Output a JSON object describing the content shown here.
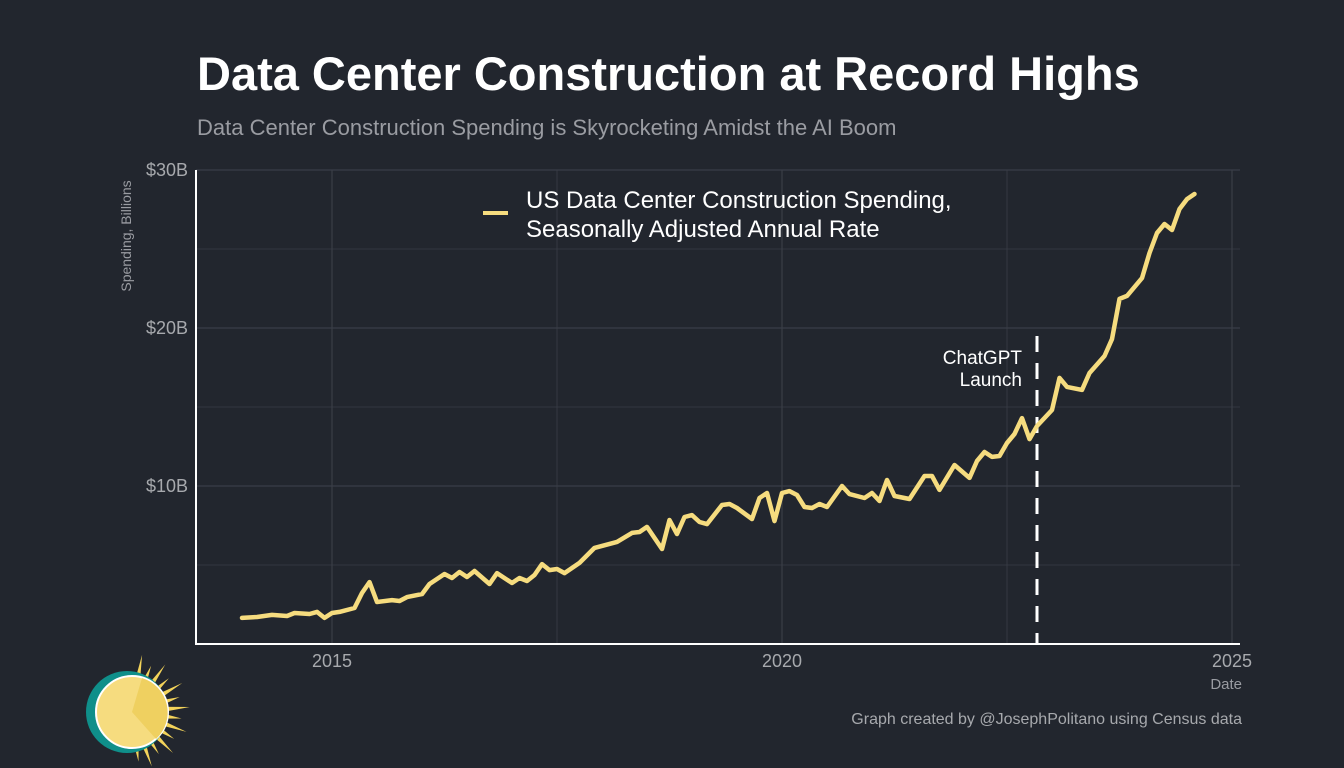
{
  "colors": {
    "background": "#22262e",
    "line": "#f6dc7f",
    "grid": "#3a3e47",
    "axis": "#ffffff",
    "annotation": "#ffffff"
  },
  "logo": {
    "name": "sun-logo-icon"
  },
  "chart_data": {
    "type": "line",
    "title": "Data Center Construction at Record Highs",
    "subtitle": "Data Center Construction Spending is Skyrocketing Amidst the AI Boom",
    "xlabel": "Date",
    "ylabel": "Spending, Billions",
    "ylim": [
      0,
      30
    ],
    "xlim": [
      "2013-09",
      "2025-01"
    ],
    "yticks": [
      {
        "value": 10,
        "label": "$10B"
      },
      {
        "value": 20,
        "label": "$20B"
      },
      {
        "value": 30,
        "label": "$30B"
      }
    ],
    "xticks": [
      {
        "value": 2015,
        "label": "2015"
      },
      {
        "value": 2020,
        "label": "2020"
      },
      {
        "value": 2025,
        "label": "2025"
      }
    ],
    "grid": true,
    "legend_placement": "top-center",
    "credit": "Graph created by @JosephPolitano using Census data",
    "annotation": {
      "date": "2022-11",
      "line1": "ChatGPT",
      "line2": "Launch"
    },
    "series": [
      {
        "name_line1": "US Data Center Construction Spending,",
        "name_line2": "Seasonally Adjusted Annual Rate",
        "points": [
          [
            "2014-01",
            1.65
          ],
          [
            "2014-03",
            1.71
          ],
          [
            "2014-05",
            1.84
          ],
          [
            "2014-07",
            1.77
          ],
          [
            "2014-08",
            1.96
          ],
          [
            "2014-10",
            1.9
          ],
          [
            "2014-11",
            2.03
          ],
          [
            "2014-12",
            1.65
          ],
          [
            "2015-01",
            1.96
          ],
          [
            "2015-02",
            2.03
          ],
          [
            "2015-04",
            2.28
          ],
          [
            "2015-05",
            3.23
          ],
          [
            "2015-06",
            3.92
          ],
          [
            "2015-07",
            2.66
          ],
          [
            "2015-09",
            2.78
          ],
          [
            "2015-10",
            2.72
          ],
          [
            "2015-11",
            2.97
          ],
          [
            "2016-01",
            3.16
          ],
          [
            "2016-02",
            3.8
          ],
          [
            "2016-04",
            4.43
          ],
          [
            "2016-05",
            4.18
          ],
          [
            "2016-06",
            4.56
          ],
          [
            "2016-07",
            4.24
          ],
          [
            "2016-08",
            4.62
          ],
          [
            "2016-10",
            3.8
          ],
          [
            "2016-11",
            4.49
          ],
          [
            "2017-01",
            3.86
          ],
          [
            "2017-02",
            4.18
          ],
          [
            "2017-03",
            3.99
          ],
          [
            "2017-04",
            4.37
          ],
          [
            "2017-05",
            5.06
          ],
          [
            "2017-06",
            4.68
          ],
          [
            "2017-07",
            4.75
          ],
          [
            "2017-08",
            4.49
          ],
          [
            "2017-10",
            5.13
          ],
          [
            "2017-12",
            6.08
          ],
          [
            "2018-03",
            6.46
          ],
          [
            "2018-05",
            7.03
          ],
          [
            "2018-06",
            7.09
          ],
          [
            "2018-07",
            7.41
          ],
          [
            "2018-09",
            6.01
          ],
          [
            "2018-10",
            7.85
          ],
          [
            "2018-11",
            6.96
          ],
          [
            "2018-12",
            8.04
          ],
          [
            "2019-01",
            8.16
          ],
          [
            "2019-02",
            7.72
          ],
          [
            "2019-03",
            7.59
          ],
          [
            "2019-05",
            8.8
          ],
          [
            "2019-06",
            8.86
          ],
          [
            "2019-07",
            8.61
          ],
          [
            "2019-09",
            7.91
          ],
          [
            "2019-10",
            9.24
          ],
          [
            "2019-11",
            9.56
          ],
          [
            "2019-12",
            7.78
          ],
          [
            "2020-01",
            9.56
          ],
          [
            "2020-02",
            9.68
          ],
          [
            "2020-03",
            9.43
          ],
          [
            "2020-04",
            8.67
          ],
          [
            "2020-05",
            8.61
          ],
          [
            "2020-06",
            8.86
          ],
          [
            "2020-07",
            8.67
          ],
          [
            "2020-09",
            10.0
          ],
          [
            "2020-10",
            9.49
          ],
          [
            "2020-12",
            9.24
          ],
          [
            "2021-01",
            9.56
          ],
          [
            "2021-02",
            9.05
          ],
          [
            "2021-03",
            10.38
          ],
          [
            "2021-04",
            9.37
          ],
          [
            "2021-06",
            9.18
          ],
          [
            "2021-08",
            10.63
          ],
          [
            "2021-09",
            10.63
          ],
          [
            "2021-10",
            9.75
          ],
          [
            "2021-12",
            11.33
          ],
          [
            "2022-02",
            10.51
          ],
          [
            "2022-03",
            11.58
          ],
          [
            "2022-04",
            12.15
          ],
          [
            "2022-05",
            11.84
          ],
          [
            "2022-06",
            11.9
          ],
          [
            "2022-07",
            12.72
          ],
          [
            "2022-08",
            13.29
          ],
          [
            "2022-09",
            14.3
          ],
          [
            "2022-10",
            12.97
          ],
          [
            "2022-11",
            13.8
          ],
          [
            "2023-01",
            14.81
          ],
          [
            "2023-02",
            16.84
          ],
          [
            "2023-03",
            16.27
          ],
          [
            "2023-05",
            16.08
          ],
          [
            "2023-06",
            17.15
          ],
          [
            "2023-08",
            18.23
          ],
          [
            "2023-09",
            19.3
          ],
          [
            "2023-10",
            21.84
          ],
          [
            "2023-11",
            22.03
          ],
          [
            "2024-01",
            23.16
          ],
          [
            "2024-02",
            24.75
          ],
          [
            "2024-03",
            26.01
          ],
          [
            "2024-04",
            26.58
          ],
          [
            "2024-05",
            26.2
          ],
          [
            "2024-06",
            27.53
          ],
          [
            "2024-07",
            28.16
          ],
          [
            "2024-08",
            28.48
          ]
        ]
      }
    ]
  }
}
